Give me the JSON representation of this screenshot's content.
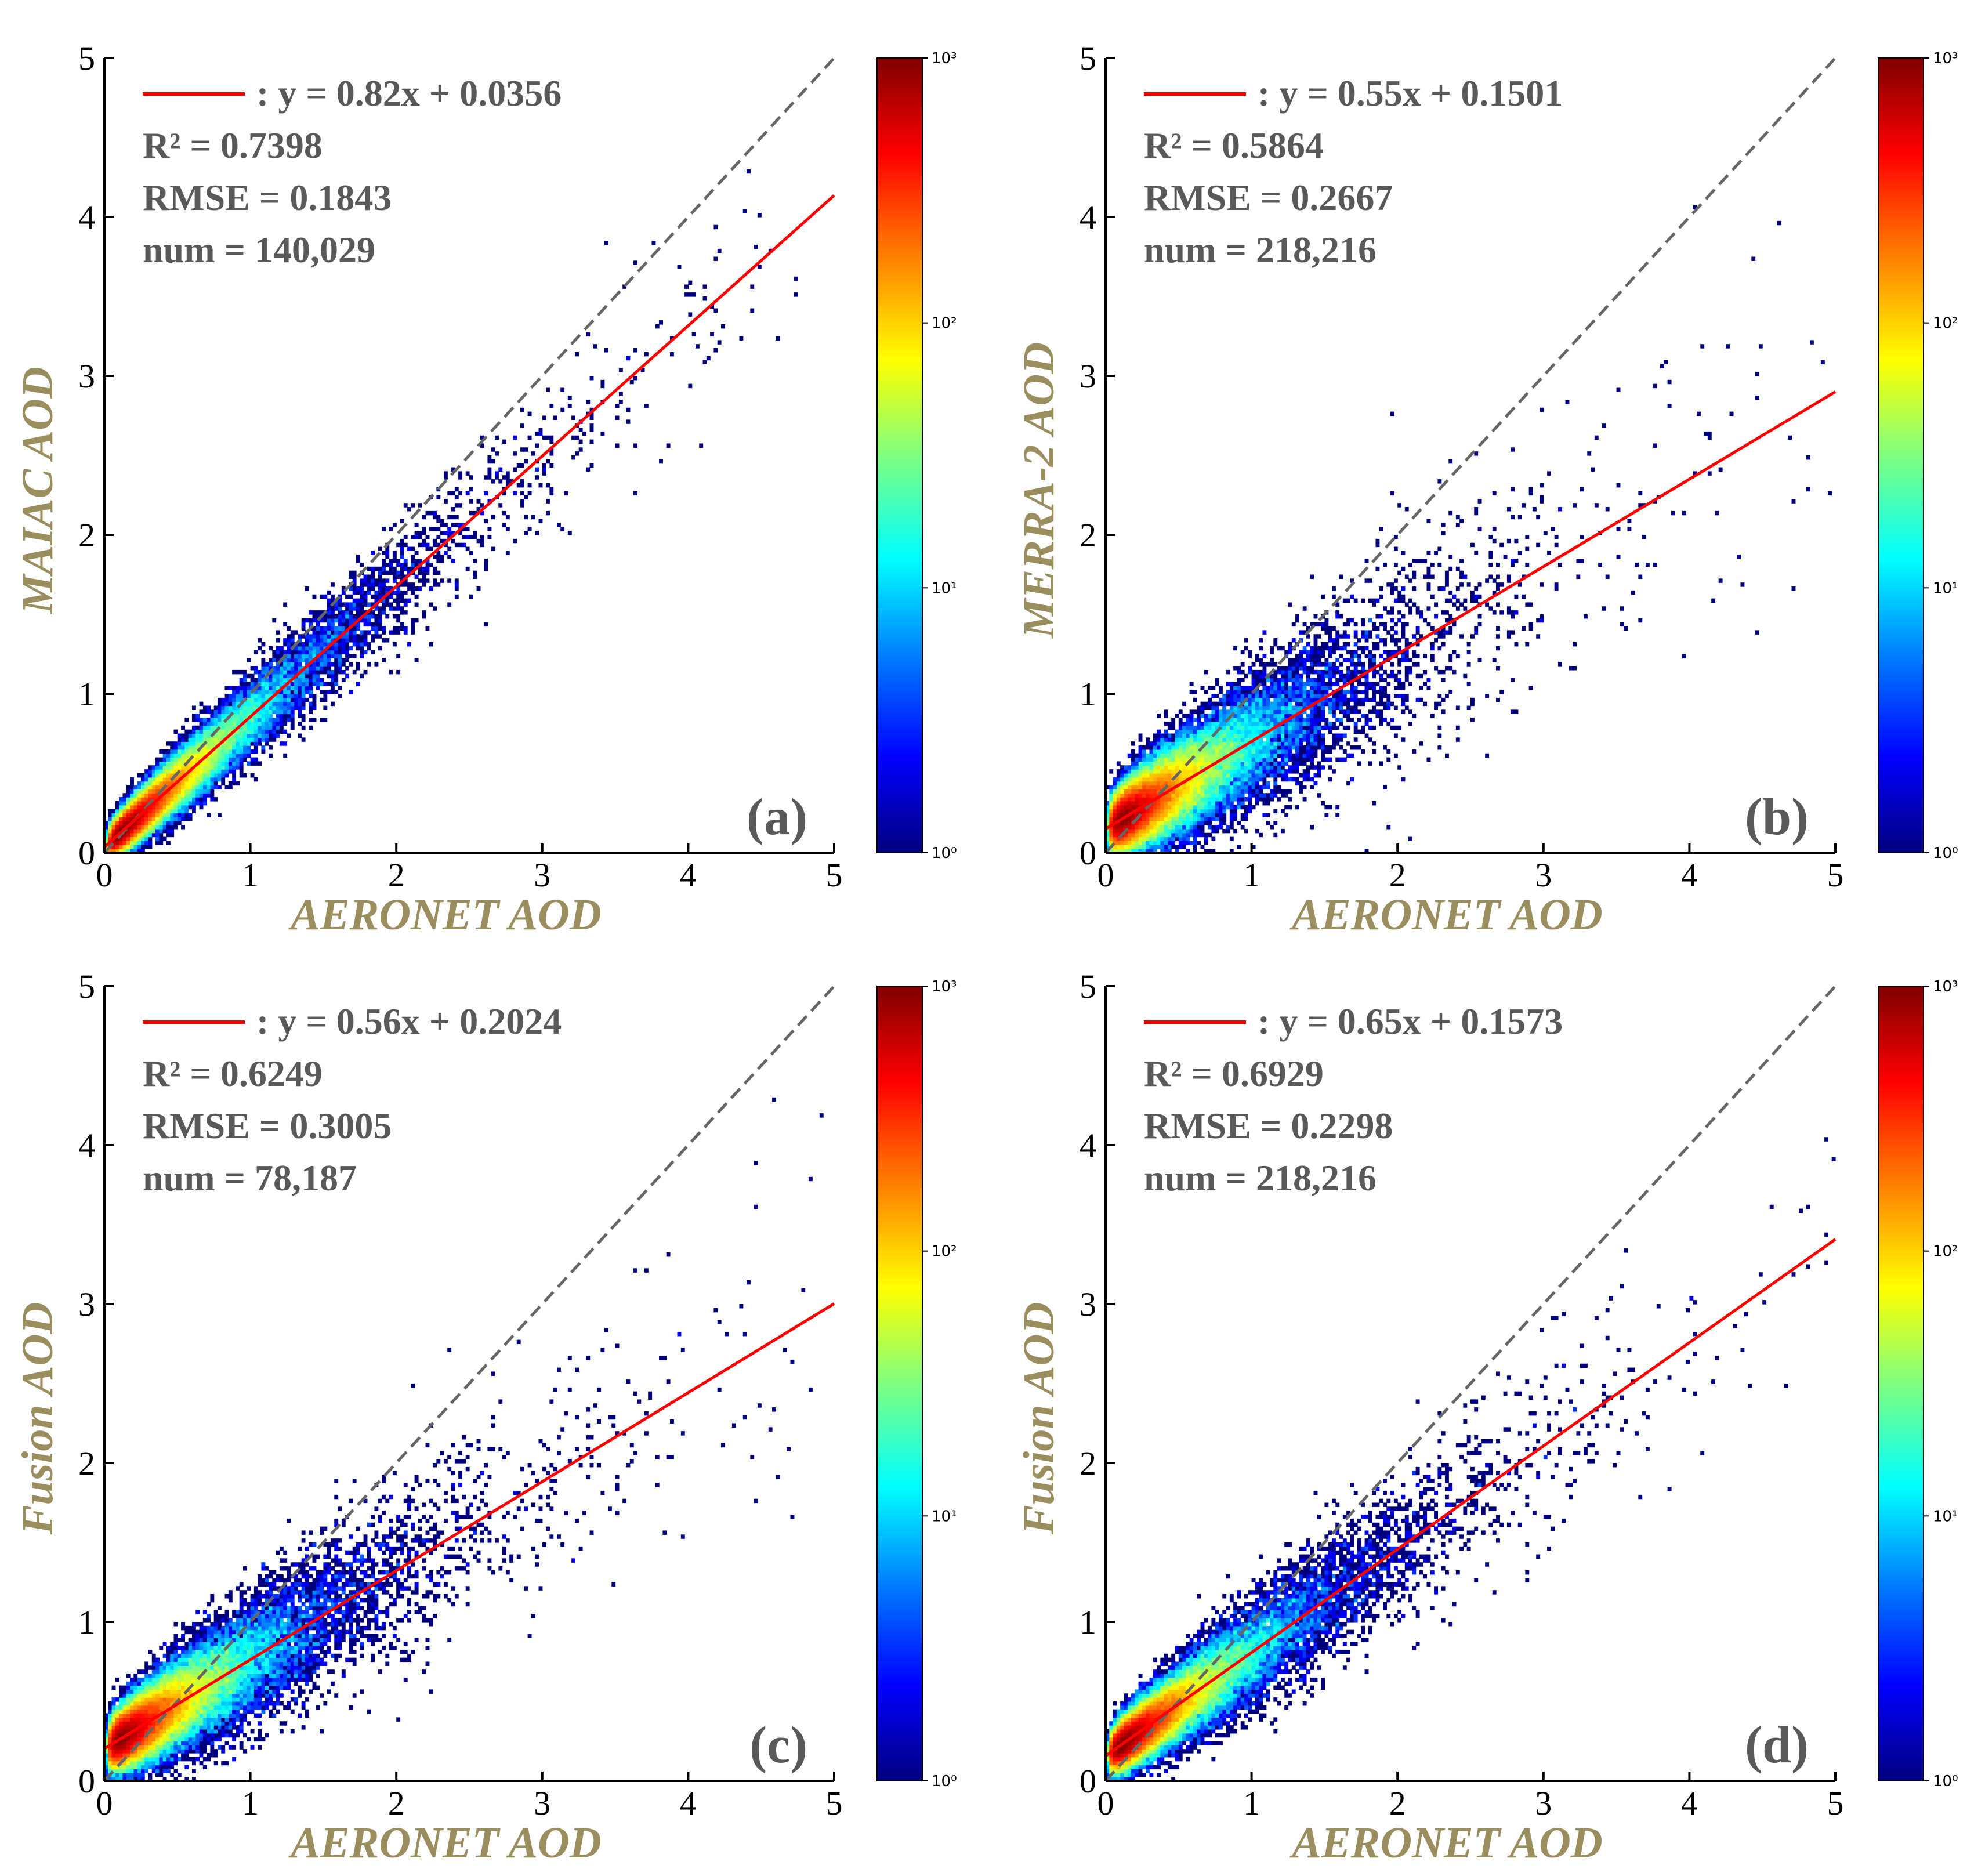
{
  "colors": {
    "fit_line": "#ff0000",
    "identity_line": "#666666",
    "axis_title": "#9b8e5e",
    "stat_text": "#595959",
    "colormap": [
      "#00007f",
      "#0000ff",
      "#0080ff",
      "#00ffff",
      "#80ff80",
      "#ffff00",
      "#ff8000",
      "#ff0000",
      "#7f0000"
    ]
  },
  "chart_data": [
    {
      "type": "heatmap",
      "panel": "(a)",
      "xlabel": "AERONET AOD",
      "ylabel": "MAIAC AOD",
      "xlim": [
        0,
        5
      ],
      "ylim": [
        0,
        5
      ],
      "xticks": [
        "0",
        "1",
        "2",
        "3",
        "4",
        "5"
      ],
      "yticks": [
        "0",
        "1",
        "2",
        "3",
        "4",
        "5"
      ],
      "fit": {
        "slope": 0.82,
        "intercept": 0.0356
      },
      "equation": ": y = 0.82x + 0.0356",
      "r2_label": "R² = 0.7398",
      "rmse_label": "RMSE = 0.1843",
      "num_label": "num = 140,029",
      "r2": 0.7398,
      "rmse": 0.1843,
      "num": 140029,
      "scatter_spread": 0.16,
      "colorbar": {
        "scale": "log",
        "range": [
          1,
          1000
        ],
        "ticks": [
          "10⁰",
          "10¹",
          "10²",
          "10³"
        ]
      }
    },
    {
      "type": "heatmap",
      "panel": "(b)",
      "xlabel": "AERONET AOD",
      "ylabel": "MERRA-2 AOD",
      "xlim": [
        0,
        5
      ],
      "ylim": [
        0,
        5
      ],
      "xticks": [
        "0",
        "1",
        "2",
        "3",
        "4",
        "5"
      ],
      "yticks": [
        "0",
        "1",
        "2",
        "3",
        "4",
        "5"
      ],
      "fit": {
        "slope": 0.55,
        "intercept": 0.1501
      },
      "equation": ": y = 0.55x + 0.1501",
      "r2_label": "R² = 0.5864",
      "rmse_label": "RMSE = 0.2667",
      "num_label": "num = 218,216",
      "r2": 0.5864,
      "rmse": 0.2667,
      "num": 218216,
      "scatter_spread": 0.26,
      "colorbar": {
        "scale": "log",
        "range": [
          1,
          1000
        ],
        "ticks": [
          "10⁰",
          "10¹",
          "10²",
          "10³"
        ]
      }
    },
    {
      "type": "heatmap",
      "panel": "(c)",
      "xlabel": "AERONET AOD",
      "ylabel": "Fusion AOD",
      "xlim": [
        0,
        5
      ],
      "ylim": [
        0,
        5
      ],
      "xticks": [
        "0",
        "1",
        "2",
        "3",
        "4",
        "5"
      ],
      "yticks": [
        "0",
        "1",
        "2",
        "3",
        "4",
        "5"
      ],
      "fit": {
        "slope": 0.56,
        "intercept": 0.2024
      },
      "equation": ": y = 0.56x + 0.2024",
      "r2_label": "R² = 0.6249",
      "rmse_label": "RMSE = 0.3005",
      "num_label": "num = 78,187",
      "r2": 0.6249,
      "rmse": 0.3005,
      "num": 78187,
      "scatter_spread": 0.24,
      "colorbar": {
        "scale": "log",
        "range": [
          1,
          1000
        ],
        "ticks": [
          "10⁰",
          "10¹",
          "10²",
          "10³"
        ]
      }
    },
    {
      "type": "heatmap",
      "panel": "(d)",
      "xlabel": "AERONET AOD",
      "ylabel": "Fusion AOD",
      "xlim": [
        0,
        5
      ],
      "ylim": [
        0,
        5
      ],
      "xticks": [
        "0",
        "1",
        "2",
        "3",
        "4",
        "5"
      ],
      "yticks": [
        "0",
        "1",
        "2",
        "3",
        "4",
        "5"
      ],
      "fit": {
        "slope": 0.65,
        "intercept": 0.1573
      },
      "equation": ": y = 0.65x + 0.1573",
      "r2_label": "R² = 0.6929",
      "rmse_label": "RMSE = 0.2298",
      "num_label": "num = 218,216",
      "r2": 0.6929,
      "rmse": 0.2298,
      "num": 218216,
      "scatter_spread": 0.2,
      "colorbar": {
        "scale": "log",
        "range": [
          1,
          1000
        ],
        "ticks": [
          "10⁰",
          "10¹",
          "10²",
          "10³"
        ]
      }
    }
  ]
}
